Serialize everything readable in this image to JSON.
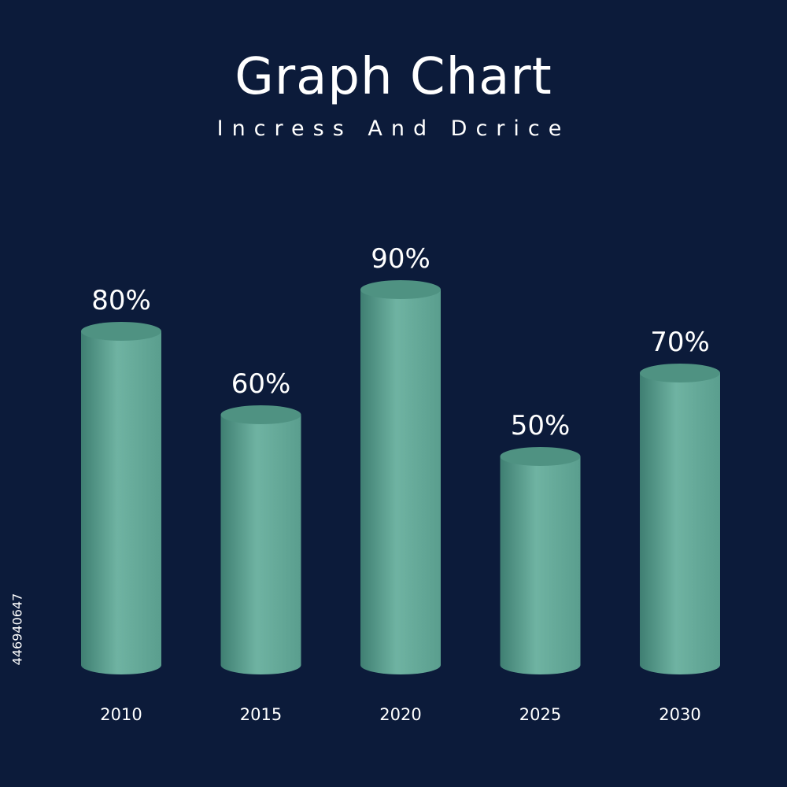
{
  "chart_data": {
    "type": "bar",
    "title": "Graph Chart",
    "subtitle": "Incress And Dcrice",
    "categories": [
      "2010",
      "2015",
      "2020",
      "2025",
      "2030"
    ],
    "values": [
      80,
      60,
      90,
      50,
      70
    ],
    "labels": [
      "80%",
      "60%",
      "90%",
      "50%",
      "70%"
    ],
    "ylim": [
      0,
      100
    ],
    "grid": false,
    "legend": "none"
  },
  "side_id": "446940647",
  "colors": {
    "background": "#0c1b3a",
    "bar_light": "#6fb3a2",
    "bar_mid": "#5a9e8e",
    "bar_dark": "#3f7f72",
    "bar_top": "#4f9282",
    "text": "#ffffff"
  }
}
